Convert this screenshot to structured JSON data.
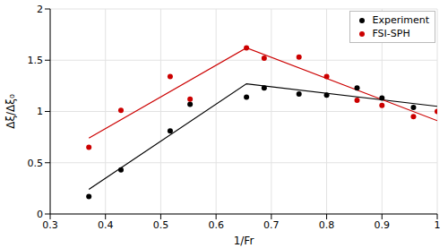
{
  "chart_data": {
    "type": "scatter",
    "x_label": "1/Fr",
    "y_label": "Δξ/Δξ₀",
    "xlim": [
      0.3,
      1
    ],
    "xticks": [
      0.3,
      0.4,
      0.5,
      0.6,
      0.7,
      0.8,
      0.9,
      1
    ],
    "ylim": [
      0,
      2
    ],
    "yticks": [
      0,
      0.5,
      1,
      1.5,
      2
    ],
    "grid": true,
    "legend": "upper right",
    "series": [
      {
        "name": "Experiment",
        "color": "#000000",
        "type": "scatter",
        "marker": "circle",
        "x": [
          0.37,
          0.428,
          0.517,
          0.553,
          0.655,
          0.687,
          0.75,
          0.8,
          0.855,
          0.9,
          0.957
        ],
        "values": [
          0.17,
          0.43,
          0.81,
          1.07,
          1.14,
          1.23,
          1.17,
          1.16,
          1.23,
          1.13,
          1.04
        ]
      },
      {
        "name": "FSI-SPH",
        "color": "#cc0000",
        "type": "scatter",
        "marker": "circle",
        "x": [
          0.37,
          0.428,
          0.517,
          0.553,
          0.655,
          0.687,
          0.75,
          0.8,
          0.855,
          0.9,
          0.957,
          1
        ],
        "values": [
          0.65,
          1.01,
          1.34,
          1.12,
          1.62,
          1.52,
          1.53,
          1.34,
          1.11,
          1.06,
          0.95,
          1.0
        ]
      },
      {
        "color": "#000000",
        "type": "line",
        "line_style": "solid",
        "x": [
          0.37,
          0.655,
          1
        ],
        "values": [
          0.24,
          1.27,
          1.05
        ]
      },
      {
        "color": "#cc0000",
        "type": "line",
        "line_style": "solid",
        "x": [
          0.37,
          0.655,
          1
        ],
        "values": [
          0.74,
          1.62,
          0.91
        ]
      }
    ]
  }
}
